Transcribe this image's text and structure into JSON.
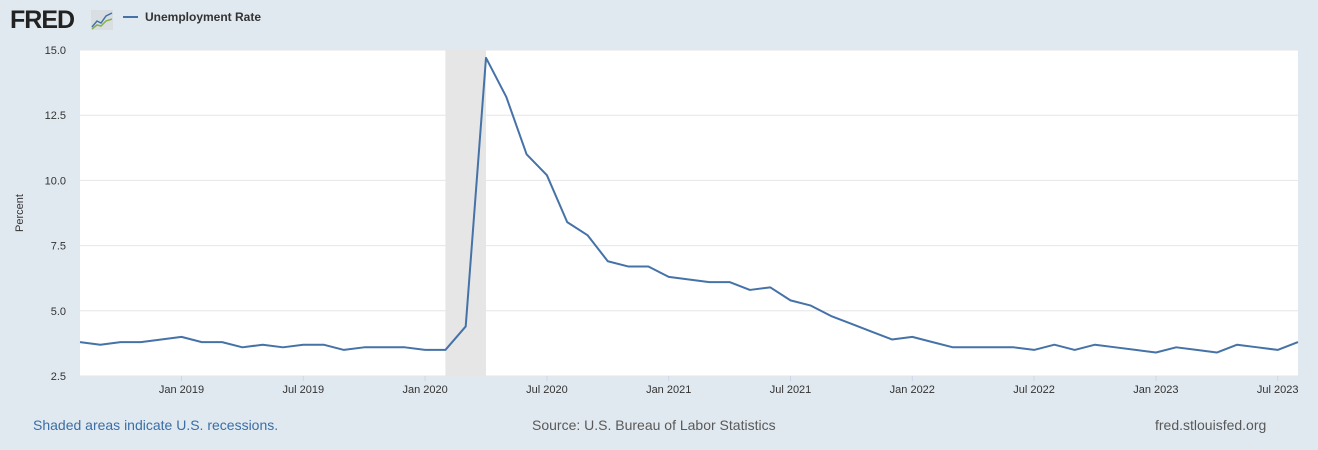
{
  "header": {
    "logo_text": "FRED",
    "legend_label": "Unemployment Rate"
  },
  "footer": {
    "recession_note": "Shaded areas indicate U.S. recessions.",
    "source": "Source: U.S. Bureau of Labor Statistics",
    "site": "fred.stlouisfed.org"
  },
  "colors": {
    "line": "#4572a7",
    "recession": "#e6e6e6",
    "background": "#e1e9f0"
  },
  "chart_data": {
    "type": "line",
    "title": "Unemployment Rate",
    "ylabel": "Percent",
    "xlabel": "",
    "ylim": [
      2.5,
      15.0
    ],
    "yticks": [
      "2.5",
      "5.0",
      "7.5",
      "10.0",
      "12.5",
      "15.0"
    ],
    "start": "2018-08",
    "xticks": [
      {
        "index": 5,
        "label": "Jan 2019"
      },
      {
        "index": 11,
        "label": "Jul 2019"
      },
      {
        "index": 17,
        "label": "Jan 2020"
      },
      {
        "index": 23,
        "label": "Jul 2020"
      },
      {
        "index": 29,
        "label": "Jan 2021"
      },
      {
        "index": 35,
        "label": "Jul 2021"
      },
      {
        "index": 41,
        "label": "Jan 2022"
      },
      {
        "index": 47,
        "label": "Jul 2022"
      },
      {
        "index": 53,
        "label": "Jan 2023"
      },
      {
        "index": 59,
        "label": "Jul 2023"
      }
    ],
    "recessions": [
      {
        "start_index": 18,
        "end_index": 20
      }
    ],
    "series": [
      {
        "name": "Unemployment Rate",
        "values": [
          3.8,
          3.7,
          3.8,
          3.8,
          3.9,
          4.0,
          3.8,
          3.8,
          3.6,
          3.7,
          3.6,
          3.7,
          3.7,
          3.5,
          3.6,
          3.6,
          3.6,
          3.5,
          3.5,
          4.4,
          14.7,
          13.2,
          11.0,
          10.2,
          8.4,
          7.9,
          6.9,
          6.7,
          6.7,
          6.3,
          6.2,
          6.1,
          6.1,
          5.8,
          5.9,
          5.4,
          5.2,
          4.8,
          4.5,
          4.2,
          3.9,
          4.0,
          3.8,
          3.6,
          3.6,
          3.6,
          3.6,
          3.5,
          3.7,
          3.5,
          3.7,
          3.6,
          3.5,
          3.4,
          3.6,
          3.5,
          3.4,
          3.7,
          3.6,
          3.5,
          3.8
        ]
      }
    ],
    "grid": true,
    "legend": "top-left"
  }
}
